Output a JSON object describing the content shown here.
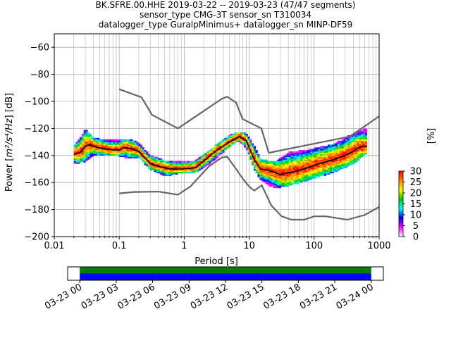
{
  "title_lines": [
    "BK.SFRE.00.HHE   2019-03-22 -- 2019-03-23  (47/47 segments)",
    "sensor_type CMG-3T sensor_sn T310034",
    "datalogger_type GuralpMinimus+ datalogger_sn MINP-DF59"
  ],
  "chart_data": {
    "type": "ppsd",
    "xlabel": "Period [s]",
    "ylabel_prefix": "Power [",
    "ylabel_unit": "m²/s⁴/Hz",
    "ylabel_suffix": "] [dB]",
    "x_scale": "log",
    "xlim": [
      0.01,
      1000
    ],
    "ylim": [
      -200,
      -50
    ],
    "x_ticks": [
      0.01,
      0.1,
      1,
      10,
      100,
      1000
    ],
    "x_tick_labels": [
      "0.01",
      "0.1",
      "1",
      "10",
      "100",
      "1000"
    ],
    "y_ticks": [
      -200,
      -180,
      -160,
      -140,
      -120,
      -100,
      -80,
      -60
    ],
    "y_tick_labels": [
      "−200",
      "−180",
      "−160",
      "−140",
      "−120",
      "−100",
      "−80",
      "−60"
    ],
    "grid": true,
    "colorbar": {
      "label": "[%]",
      "min": 0,
      "max": 30,
      "ticks": [
        0,
        5,
        10,
        15,
        20,
        25,
        30
      ],
      "tick_labels": [
        "0",
        "5",
        "10",
        "15",
        "20",
        "25",
        "30"
      ]
    },
    "nhnm": {
      "name": "NHNM",
      "points": [
        [
          0.1,
          -91
        ],
        [
          0.22,
          -97
        ],
        [
          0.32,
          -110
        ],
        [
          0.8,
          -120
        ],
        [
          3.8,
          -98
        ],
        [
          4.6,
          -96.5
        ],
        [
          6.3,
          -101
        ],
        [
          7.9,
          -113
        ],
        [
          15.4,
          -120
        ],
        [
          20,
          -138
        ],
        [
          354,
          -126
        ],
        [
          1000,
          -111
        ]
      ]
    },
    "nlnm": {
      "name": "NLNM",
      "points": [
        [
          0.1,
          -168
        ],
        [
          0.17,
          -167
        ],
        [
          0.4,
          -166.7
        ],
        [
          0.8,
          -169
        ],
        [
          1.24,
          -163
        ],
        [
          2.4,
          -148
        ],
        [
          3.8,
          -141.5
        ],
        [
          4.6,
          -141
        ],
        [
          6.3,
          -150
        ],
        [
          7.9,
          -157
        ],
        [
          10,
          -163
        ],
        [
          12,
          -166
        ],
        [
          15.6,
          -162
        ],
        [
          21.9,
          -177
        ],
        [
          31.6,
          -185
        ],
        [
          45,
          -187.5
        ],
        [
          70,
          -187.5
        ],
        [
          100,
          -185
        ],
        [
          150,
          -185
        ],
        [
          325,
          -187.5
        ],
        [
          600,
          -184
        ],
        [
          1000,
          -178
        ]
      ]
    },
    "mean": {
      "name": "mean",
      "points": [
        [
          0.02,
          -139
        ],
        [
          0.025,
          -137
        ],
        [
          0.03,
          -133
        ],
        [
          0.035,
          -131
        ],
        [
          0.045,
          -133
        ],
        [
          0.06,
          -134
        ],
        [
          0.08,
          -134
        ],
        [
          0.1,
          -134
        ],
        [
          0.12,
          -133
        ],
        [
          0.15,
          -134
        ],
        [
          0.2,
          -136
        ],
        [
          0.3,
          -144
        ],
        [
          0.4,
          -147
        ],
        [
          0.6,
          -149
        ],
        [
          0.8,
          -149
        ],
        [
          1,
          -149
        ],
        [
          1.5,
          -148
        ],
        [
          2,
          -143
        ],
        [
          3,
          -136
        ],
        [
          5,
          -129
        ],
        [
          7,
          -125
        ],
        [
          9,
          -128
        ],
        [
          12,
          -141
        ],
        [
          15,
          -148
        ],
        [
          20,
          -149
        ],
        [
          30,
          -152
        ],
        [
          50,
          -150
        ],
        [
          80,
          -147
        ],
        [
          120,
          -144
        ],
        [
          200,
          -141
        ],
        [
          300,
          -138
        ],
        [
          400,
          -135
        ],
        [
          500,
          -131
        ],
        [
          650,
          -131
        ]
      ]
    },
    "mode": {
      "name": "mode",
      "points": [
        [
          0.02,
          -139
        ],
        [
          0.025,
          -138
        ],
        [
          0.03,
          -133
        ],
        [
          0.035,
          -132
        ],
        [
          0.045,
          -134
        ],
        [
          0.06,
          -135
        ],
        [
          0.08,
          -136
        ],
        [
          0.1,
          -136
        ],
        [
          0.12,
          -134
        ],
        [
          0.15,
          -135
        ],
        [
          0.2,
          -137
        ],
        [
          0.3,
          -146
        ],
        [
          0.4,
          -148
        ],
        [
          0.6,
          -150
        ],
        [
          0.8,
          -150
        ],
        [
          1,
          -150
        ],
        [
          1.5,
          -149
        ],
        [
          2,
          -144
        ],
        [
          3,
          -137
        ],
        [
          5,
          -130
        ],
        [
          7,
          -126
        ],
        [
          9,
          -129
        ],
        [
          12,
          -143
        ],
        [
          15,
          -150
        ],
        [
          20,
          -151
        ],
        [
          30,
          -154
        ],
        [
          50,
          -152
        ],
        [
          80,
          -149
        ],
        [
          120,
          -146
        ],
        [
          200,
          -143
        ],
        [
          300,
          -140
        ],
        [
          400,
          -137
        ],
        [
          500,
          -134
        ],
        [
          650,
          -133
        ]
      ]
    },
    "density_band": {
      "name": "ppsd",
      "points": [
        [
          0.02,
          -146,
          -134
        ],
        [
          0.03,
          -144,
          -121
        ],
        [
          0.04,
          -140,
          -127
        ],
        [
          0.06,
          -140,
          -129
        ],
        [
          0.1,
          -140,
          -128
        ],
        [
          0.15,
          -142,
          -128
        ],
        [
          0.2,
          -141,
          -131
        ],
        [
          0.3,
          -150,
          -140
        ],
        [
          0.5,
          -155,
          -144
        ],
        [
          0.8,
          -153,
          -145
        ],
        [
          1.5,
          -152,
          -144
        ],
        [
          2.5,
          -146,
          -136
        ],
        [
          5,
          -133,
          -125
        ],
        [
          7,
          -129,
          -123
        ],
        [
          9,
          -134,
          -124
        ],
        [
          12,
          -150,
          -133
        ],
        [
          15,
          -158,
          -143
        ],
        [
          25,
          -164,
          -145
        ],
        [
          40,
          -162,
          -138
        ],
        [
          80,
          -158,
          -136
        ],
        [
          200,
          -152,
          -132
        ],
        [
          400,
          -146,
          -124
        ],
        [
          650,
          -138,
          -120
        ]
      ]
    },
    "timeline": {
      "start": "2019-03-22 23:00",
      "end": "2019-03-24 01:00",
      "coverage_start": "2019-03-23 00:00",
      "coverage_end": "2019-03-24 00:00",
      "colors": [
        "#008000",
        "#0000ff"
      ],
      "tick_labels": [
        "03-23 00",
        "03-23 03",
        "03-23 06",
        "03-23 09",
        "03-23 12",
        "03-23 15",
        "03-23 18",
        "03-23 21",
        "03-24 00"
      ]
    }
  }
}
